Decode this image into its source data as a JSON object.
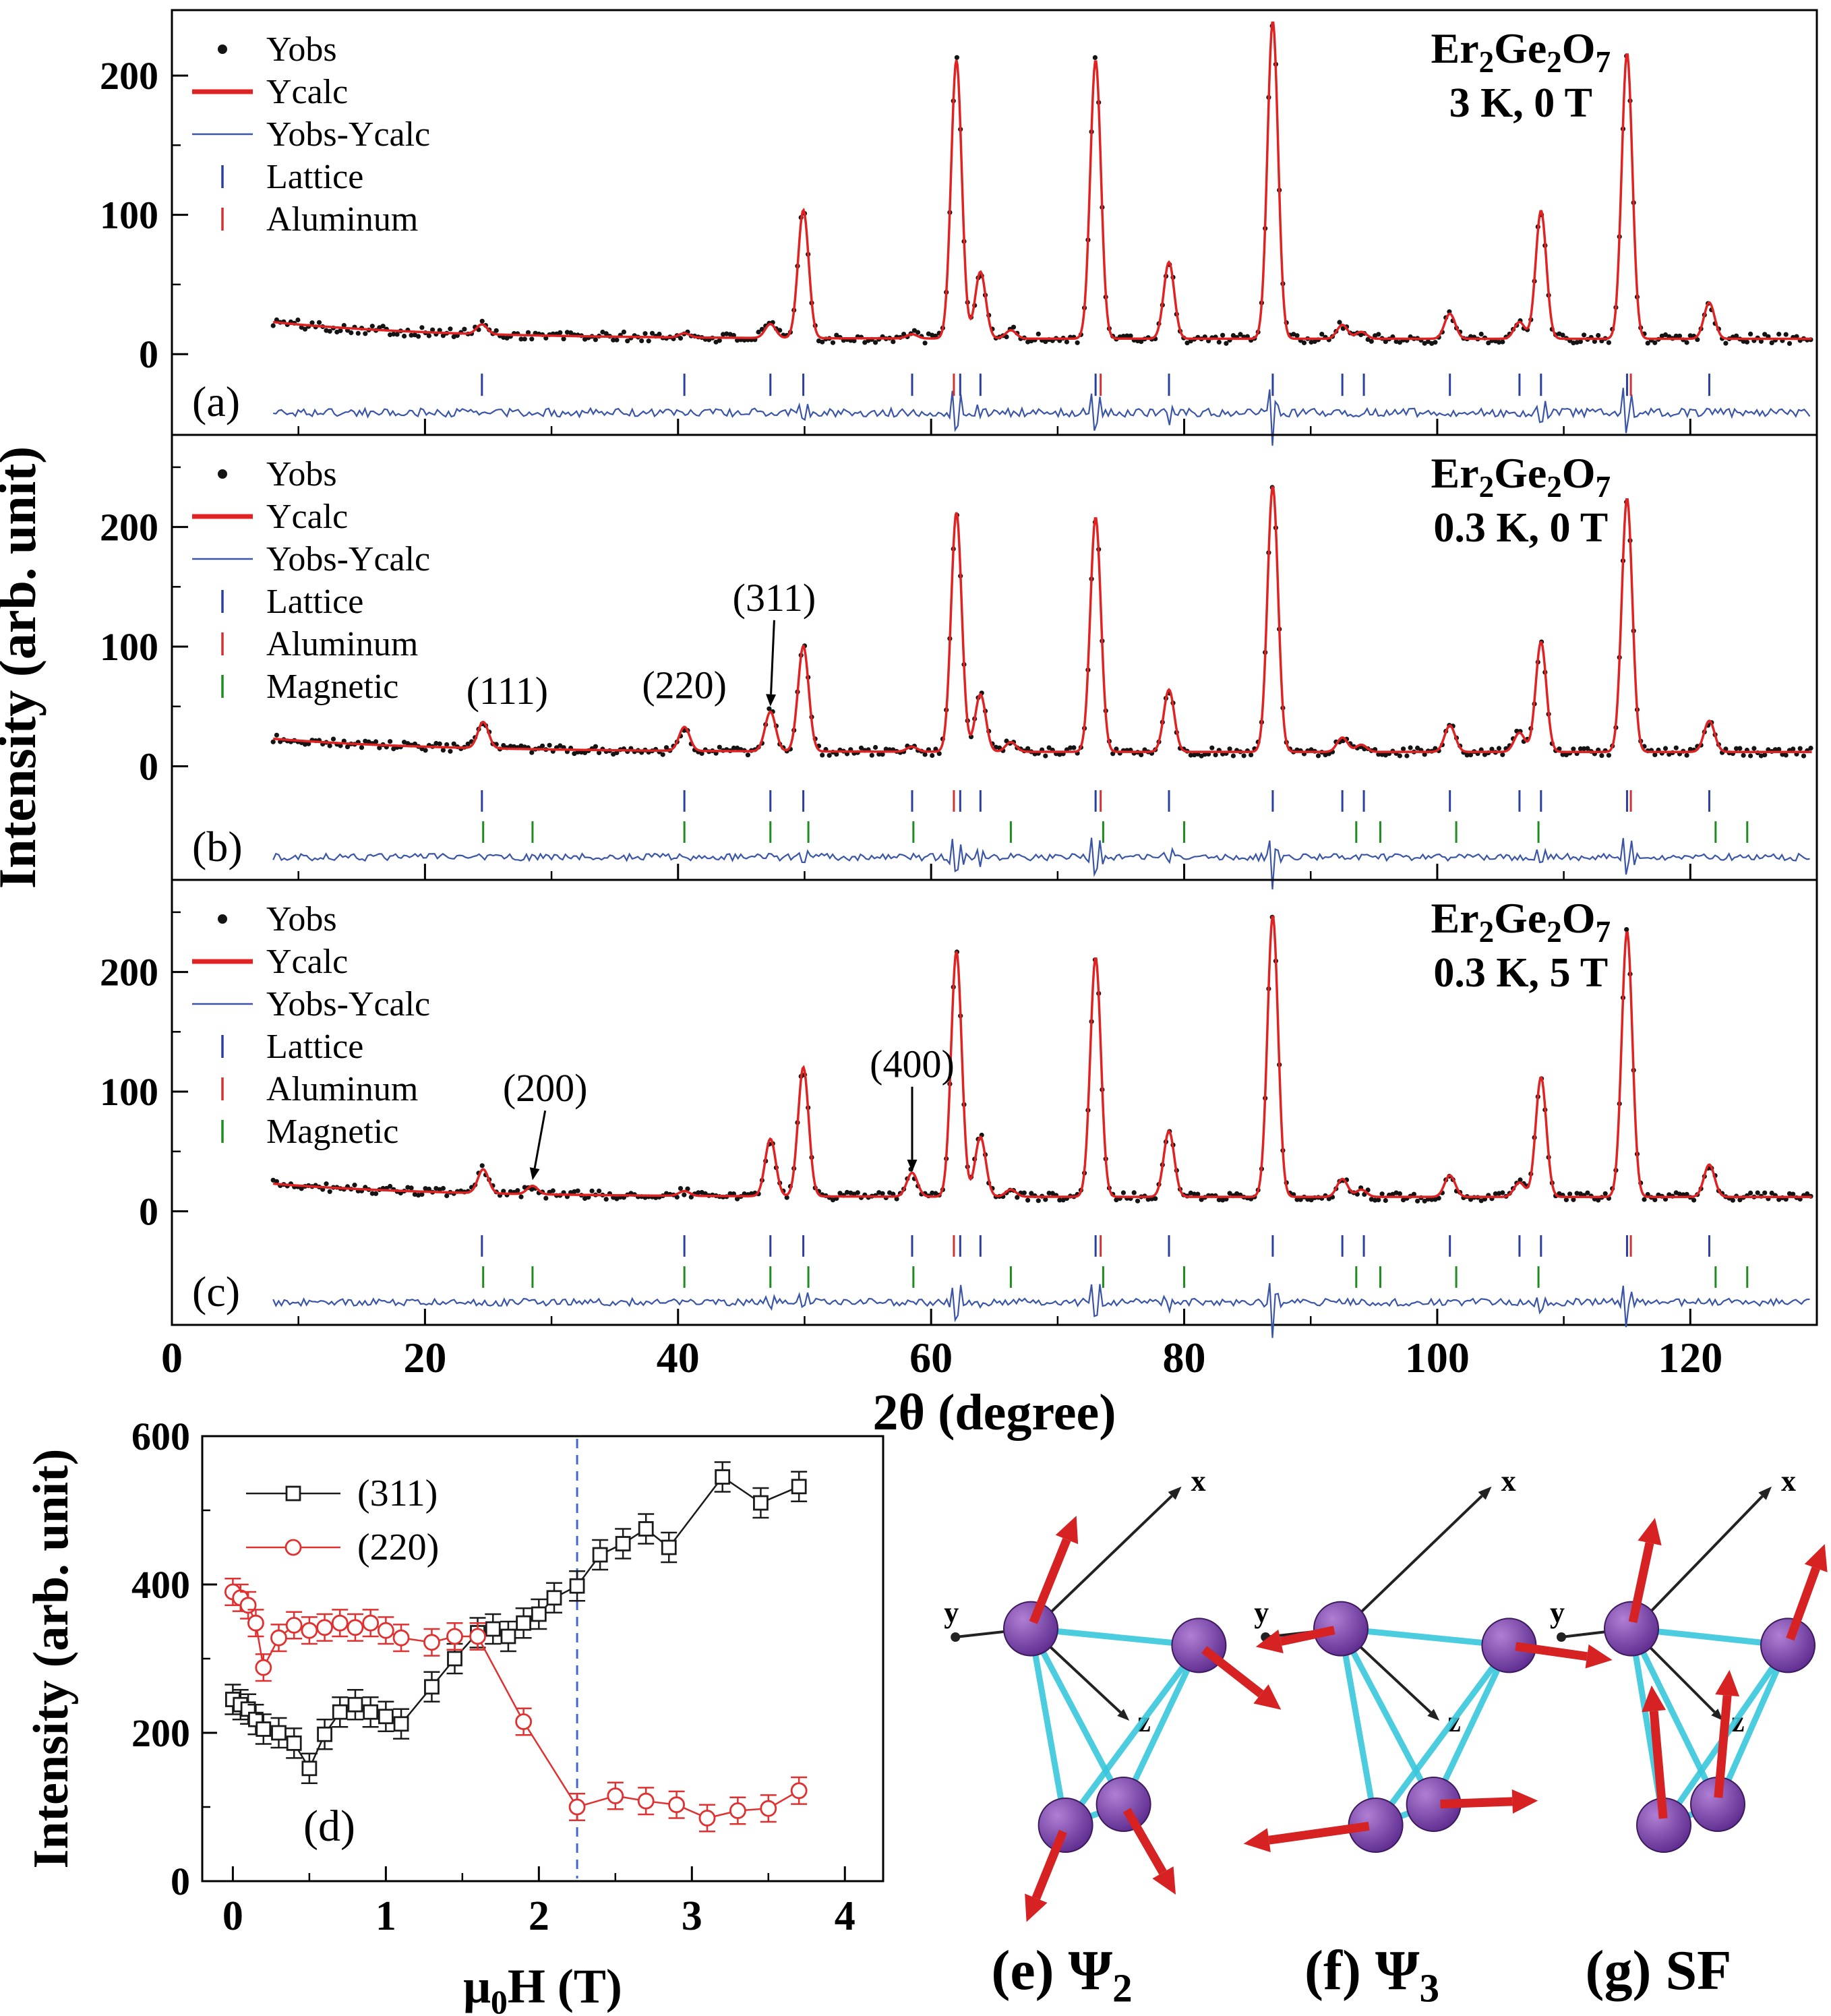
{
  "labels": {
    "shared_ylabel": "Intensity (arb. unit)",
    "shared_xlabel": "2θ (degree)"
  },
  "colors": {
    "calc": "#e02222",
    "obs": "#141414",
    "residual": "#3a55a8",
    "lattice": "#2b3f9e",
    "aluminum": "#d43030",
    "magnetic": "#1e8c1e",
    "dashed": "#4466cc",
    "series311": "#1a1a1a",
    "series220": "#e03030",
    "bond": "#39c6dc",
    "sphere_dark": "#5b2a8d",
    "sphere_light": "#b07fd4",
    "spin": "#d62222",
    "axis": "#222222",
    "frame": "#000000"
  },
  "chart_data": [
    {
      "id": "a",
      "type": "line",
      "kind": "diffraction",
      "panel_label": "(a)",
      "formula_parts": [
        {
          "t": "Er"
        },
        {
          "t": "2",
          "sub": true
        },
        {
          "t": "Ge"
        },
        {
          "t": "2",
          "sub": true
        },
        {
          "t": "O"
        },
        {
          "t": "7",
          "sub": true
        }
      ],
      "conditions": "3 K, 0 T",
      "legend": [
        {
          "label": "Yobs",
          "sym": "dot"
        },
        {
          "label": "Ycalc",
          "sym": "redline"
        },
        {
          "label": "Yobs-Ycalc",
          "sym": "blueline"
        },
        {
          "label": "Lattice",
          "sym": "bluetick"
        },
        {
          "label": "Aluminum",
          "sym": "redtick"
        }
      ],
      "xlim": [
        0,
        130
      ],
      "ylim": [
        -58,
        247
      ],
      "yticks": [
        0,
        100,
        200
      ],
      "yticks_minor": [
        50,
        150
      ],
      "xtick_major_step": 20,
      "xtick_minor_step": 10,
      "background": {
        "base": 11,
        "amp": 12,
        "decay": 13
      },
      "peaks": [
        [
          24.5,
          7
        ],
        [
          40.5,
          3
        ],
        [
          47.3,
          10
        ],
        [
          49.9,
          92
        ],
        [
          58.5,
          3
        ],
        [
          62,
          200
        ],
        [
          63.9,
          48
        ],
        [
          66.3,
          6
        ],
        [
          73,
          200
        ],
        [
          78.8,
          55
        ],
        [
          87,
          228
        ],
        [
          92.5,
          10
        ],
        [
          94,
          5
        ],
        [
          101,
          18
        ],
        [
          106.5,
          12
        ],
        [
          108.2,
          92
        ],
        [
          115,
          205
        ],
        [
          121.5,
          26
        ]
      ],
      "lattice_ticks": [
        24.5,
        40.5,
        47.3,
        49.9,
        58.5,
        62.3,
        63.9,
        73,
        78.8,
        87,
        92.5,
        94.2,
        101,
        106.5,
        108.2,
        115,
        121.5
      ],
      "aluminum_ticks": [
        61.8,
        73.4,
        115.3
      ],
      "magnetic_ticks": [],
      "tick_row_lattice": [
        -14,
        -30
      ],
      "tick_row_magnetic": null,
      "residual_level": -42,
      "annotations": [],
      "seed": 101
    },
    {
      "id": "b",
      "type": "line",
      "kind": "diffraction",
      "panel_label": "(b)",
      "formula_parts": [
        {
          "t": "Er"
        },
        {
          "t": "2",
          "sub": true
        },
        {
          "t": "Ge"
        },
        {
          "t": "2",
          "sub": true
        },
        {
          "t": "O"
        },
        {
          "t": "7",
          "sub": true
        }
      ],
      "conditions": "0.3 K, 0 T",
      "legend": [
        {
          "label": "Yobs",
          "sym": "dot"
        },
        {
          "label": "Ycalc",
          "sym": "redline"
        },
        {
          "label": "Yobs-Ycalc",
          "sym": "blueline"
        },
        {
          "label": "Lattice",
          "sym": "bluetick"
        },
        {
          "label": "Aluminum",
          "sym": "redtick"
        },
        {
          "label": "Magnetic",
          "sym": "greentick"
        }
      ],
      "xlim": [
        0,
        130
      ],
      "ylim": [
        -95,
        277
      ],
      "yticks": [
        0,
        100,
        200
      ],
      "yticks_minor": [
        50,
        150,
        250
      ],
      "xtick_major_step": 20,
      "xtick_minor_step": 10,
      "background": {
        "base": 12,
        "amp": 11,
        "decay": 13
      },
      "peaks": [
        [
          24.6,
          22
        ],
        [
          40.5,
          20
        ],
        [
          47.3,
          33
        ],
        [
          49.9,
          88
        ],
        [
          58.5,
          4
        ],
        [
          62,
          200
        ],
        [
          63.9,
          48
        ],
        [
          66.3,
          8
        ],
        [
          73,
          196
        ],
        [
          78.8,
          52
        ],
        [
          87,
          222
        ],
        [
          92.5,
          12
        ],
        [
          94,
          6
        ],
        [
          101,
          22
        ],
        [
          106.5,
          16
        ],
        [
          108.2,
          92
        ],
        [
          115,
          212
        ],
        [
          121.5,
          26
        ]
      ],
      "lattice_ticks": [
        24.5,
        40.5,
        47.3,
        49.9,
        58.5,
        62.3,
        63.9,
        73,
        78.8,
        87,
        92.5,
        94.2,
        101,
        106.5,
        108.2,
        115,
        121.5
      ],
      "aluminum_ticks": [
        61.8,
        73.4,
        115.3
      ],
      "magnetic_ticks": [
        24.6,
        28.5,
        40.5,
        47.3,
        50.3,
        58.6,
        66.3,
        73.6,
        80,
        93.6,
        95.5,
        101.5,
        108,
        122,
        124.5
      ],
      "tick_row_lattice": [
        -20,
        -38
      ],
      "tick_row_magnetic": [
        -46,
        -64
      ],
      "residual_level": -76,
      "annotations": [
        {
          "text": "(111)",
          "tx": 26.5,
          "ty": 52,
          "arrow": false
        },
        {
          "text": "(220)",
          "tx": 40.5,
          "ty": 57,
          "arrow": false
        },
        {
          "text": "(311)",
          "tx": 47.6,
          "ty": 130,
          "arrow": true,
          "ax": 47.3,
          "ay": 50
        }
      ],
      "seed": 202
    },
    {
      "id": "c",
      "type": "line",
      "kind": "diffraction",
      "panel_label": "(c)",
      "formula_parts": [
        {
          "t": "Er"
        },
        {
          "t": "2",
          "sub": true
        },
        {
          "t": "Ge"
        },
        {
          "t": "2",
          "sub": true
        },
        {
          "t": "O"
        },
        {
          "t": "7",
          "sub": true
        }
      ],
      "conditions": "0.3 K, 5 T",
      "legend": [
        {
          "label": "Yobs",
          "sym": "dot"
        },
        {
          "label": "Ycalc",
          "sym": "redline"
        },
        {
          "label": "Yobs-Ycalc",
          "sym": "blueline"
        },
        {
          "label": "Lattice",
          "sym": "bluetick"
        },
        {
          "label": "Aluminum",
          "sym": "redtick"
        },
        {
          "label": "Magnetic",
          "sym": "greentick"
        }
      ],
      "xlim": [
        0,
        130
      ],
      "ylim": [
        -95,
        277
      ],
      "yticks": [
        0,
        100,
        200
      ],
      "yticks_minor": [
        50,
        150,
        250
      ],
      "xtick_major_step": 20,
      "xtick_minor_step": 10,
      "background": {
        "base": 12,
        "amp": 11,
        "decay": 13
      },
      "peaks": [
        [
          24.6,
          20
        ],
        [
          28.5,
          7
        ],
        [
          40.5,
          4
        ],
        [
          47.3,
          48
        ],
        [
          49.9,
          108
        ],
        [
          58.5,
          20
        ],
        [
          62,
          205
        ],
        [
          63.9,
          50
        ],
        [
          66.3,
          6
        ],
        [
          73,
          200
        ],
        [
          78.8,
          55
        ],
        [
          87,
          235
        ],
        [
          92.5,
          15
        ],
        [
          94,
          6
        ],
        [
          101,
          18
        ],
        [
          106.5,
          12
        ],
        [
          108.2,
          100
        ],
        [
          115,
          222
        ],
        [
          121.5,
          27
        ]
      ],
      "lattice_ticks": [
        24.5,
        40.5,
        47.3,
        49.9,
        58.5,
        62.3,
        63.9,
        73,
        78.8,
        87,
        92.5,
        94.2,
        101,
        106.5,
        108.2,
        115,
        121.5
      ],
      "aluminum_ticks": [
        61.8,
        73.4,
        115.3
      ],
      "magnetic_ticks": [
        24.6,
        28.5,
        40.5,
        47.3,
        50.3,
        58.6,
        66.3,
        73.6,
        80,
        93.6,
        95.5,
        101.5,
        108,
        122,
        124.5
      ],
      "tick_row_lattice": [
        -20,
        -38
      ],
      "tick_row_magnetic": [
        -46,
        -64
      ],
      "residual_level": -76,
      "annotations": [
        {
          "text": "(200)",
          "tx": 29.5,
          "ty": 92,
          "arrow": true,
          "ax": 28.5,
          "ay": 26
        },
        {
          "text": "(400)",
          "tx": 58.5,
          "ty": 112,
          "arrow": true,
          "ax": 58.5,
          "ay": 33
        }
      ],
      "seed": 303
    },
    {
      "id": "d",
      "type": "scatter",
      "kind": "field-dependence",
      "panel_label": "(d)",
      "xlabel_parts": [
        {
          "t": "μ"
        },
        {
          "t": "0",
          "sub": true
        },
        {
          "t": "H (T)"
        }
      ],
      "ylabel": "Intensity (arb. unit)",
      "xlim": [
        -0.2,
        4.25
      ],
      "ylim": [
        0,
        600
      ],
      "xticks": [
        0,
        1,
        2,
        3,
        4
      ],
      "xticks_minor": [
        0.5,
        1.5,
        2.5,
        3.5
      ],
      "yticks": [
        0,
        200,
        400,
        600
      ],
      "yticks_minor": [
        100,
        300,
        500
      ],
      "dashed_x": 2.25,
      "series": [
        {
          "name": "(311)",
          "marker": "square",
          "x": [
            0.0,
            0.05,
            0.1,
            0.15,
            0.2,
            0.3,
            0.4,
            0.5,
            0.6,
            0.7,
            0.8,
            0.9,
            1.0,
            1.1,
            1.3,
            1.45,
            1.6,
            1.7,
            1.8,
            1.9,
            2.0,
            2.1,
            2.25,
            2.4,
            2.55,
            2.7,
            2.85,
            3.2,
            3.45,
            3.7
          ],
          "y": [
            245,
            238,
            232,
            218,
            205,
            200,
            186,
            152,
            198,
            228,
            238,
            228,
            222,
            212,
            262,
            300,
            335,
            340,
            330,
            348,
            360,
            382,
            398,
            440,
            455,
            475,
            450,
            545,
            510,
            532
          ],
          "err": 20
        },
        {
          "name": "(220)",
          "marker": "circle",
          "x": [
            0.0,
            0.05,
            0.1,
            0.15,
            0.2,
            0.3,
            0.4,
            0.5,
            0.6,
            0.7,
            0.8,
            0.9,
            1.0,
            1.1,
            1.3,
            1.45,
            1.6,
            1.9,
            2.25,
            2.5,
            2.7,
            2.9,
            3.1,
            3.3,
            3.5,
            3.7
          ],
          "y": [
            390,
            382,
            372,
            348,
            288,
            328,
            345,
            338,
            342,
            348,
            342,
            348,
            338,
            328,
            322,
            330,
            330,
            215,
            100,
            115,
            108,
            103,
            85,
            95,
            98,
            122
          ],
          "err": 18
        }
      ]
    }
  ],
  "spin_diagrams": [
    {
      "id": "e",
      "caption_parts": [
        {
          "t": "(e) Ψ"
        },
        {
          "t": "2",
          "sub": true
        }
      ],
      "axis_labels": {
        "x": "x",
        "y": "y",
        "z": "z"
      },
      "spheres": [
        [
          0.3,
          0.38
        ],
        [
          0.88,
          0.42
        ],
        [
          0.42,
          0.85
        ],
        [
          0.62,
          0.8
        ]
      ],
      "bonds": [
        [
          0,
          1
        ],
        [
          0,
          2
        ],
        [
          0,
          3
        ],
        [
          1,
          2
        ],
        [
          1,
          3
        ],
        [
          2,
          3
        ]
      ],
      "axes": {
        "x": {
          "from": [
            0.34,
            0.36
          ],
          "to": [
            0.82,
            0.04
          ]
        },
        "y": {
          "from": [
            0.3,
            0.38
          ],
          "to": [
            0.04,
            0.4
          ]
        },
        "z": {
          "from": [
            0.3,
            0.38
          ],
          "to": [
            0.64,
            0.6
          ]
        }
      },
      "spins": [
        {
          "s": 0,
          "angle": 68,
          "len": 0.42
        },
        {
          "s": 1,
          "angle": -38,
          "len": 0.36
        },
        {
          "s": 2,
          "angle": -112,
          "len": 0.36
        },
        {
          "s": 3,
          "angle": -60,
          "len": 0.36
        }
      ]
    },
    {
      "id": "f",
      "caption_parts": [
        {
          "t": "(f) Ψ"
        },
        {
          "t": "3",
          "sub": true
        }
      ],
      "axis_labels": {
        "x": "x",
        "y": "y",
        "z": "z"
      },
      "spheres": [
        [
          0.3,
          0.38
        ],
        [
          0.88,
          0.42
        ],
        [
          0.42,
          0.85
        ],
        [
          0.62,
          0.8
        ]
      ],
      "bonds": [
        [
          0,
          1
        ],
        [
          0,
          2
        ],
        [
          0,
          3
        ],
        [
          1,
          2
        ],
        [
          1,
          3
        ],
        [
          2,
          3
        ]
      ],
      "axes": {
        "x": {
          "from": [
            0.34,
            0.36
          ],
          "to": [
            0.82,
            0.04
          ]
        },
        "y": {
          "from": [
            0.3,
            0.38
          ],
          "to": [
            0.04,
            0.4
          ]
        },
        "z": {
          "from": [
            0.3,
            0.38
          ],
          "to": [
            0.64,
            0.6
          ]
        }
      },
      "spins": [
        {
          "s": 0,
          "angle": 192,
          "len": 0.3
        },
        {
          "s": 1,
          "angle": -8,
          "len": 0.36
        },
        {
          "s": 2,
          "angle": 188,
          "len": 0.46
        },
        {
          "s": 3,
          "angle": 2,
          "len": 0.36
        }
      ]
    },
    {
      "id": "g",
      "caption_parts": [
        {
          "t": "(g) SF"
        }
      ],
      "axis_labels": {
        "x": "x",
        "y": "y",
        "z": "z"
      },
      "spheres": [
        [
          0.3,
          0.38
        ],
        [
          0.88,
          0.42
        ],
        [
          0.42,
          0.85
        ],
        [
          0.62,
          0.8
        ]
      ],
      "bonds": [
        [
          0,
          1
        ],
        [
          0,
          2
        ],
        [
          0,
          3
        ],
        [
          1,
          2
        ],
        [
          1,
          3
        ],
        [
          2,
          3
        ]
      ],
      "axes": {
        "x": {
          "from": [
            0.34,
            0.36
          ],
          "to": [
            0.82,
            0.04
          ]
        },
        "y": {
          "from": [
            0.3,
            0.38
          ],
          "to": [
            0.04,
            0.4
          ]
        },
        "z": {
          "from": [
            0.3,
            0.38
          ],
          "to": [
            0.64,
            0.6
          ]
        }
      },
      "spins": [
        {
          "s": 0,
          "angle": 78,
          "len": 0.42
        },
        {
          "s": 1,
          "angle": 70,
          "len": 0.4
        },
        {
          "s": 2,
          "angle": 95,
          "len": 0.52
        },
        {
          "s": 3,
          "angle": 85,
          "len": 0.5
        }
      ]
    }
  ]
}
